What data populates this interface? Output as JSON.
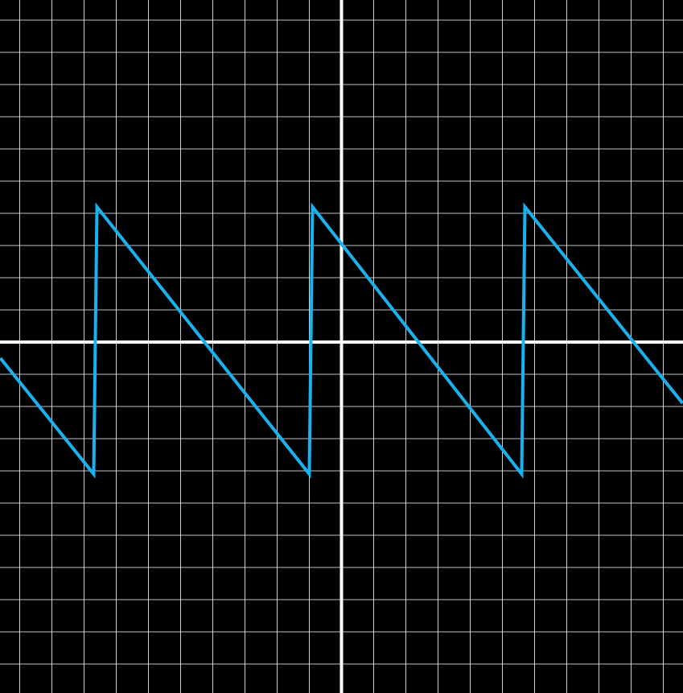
{
  "chart_data": {
    "type": "line",
    "title": "",
    "xlabel": "",
    "ylabel": "",
    "xlim": [
      -10.6,
      10.6
    ],
    "ylim": [
      -10.6,
      10.6
    ],
    "grid": true,
    "grid_step": 1,
    "axes_visible": true,
    "legend": "none",
    "series": [
      {
        "x": [
          -10.6,
          -7.7,
          -7.6,
          -1.0,
          -0.9,
          5.6,
          5.7,
          10.6
        ],
        "y": [
          -0.5,
          -4.1,
          4.2,
          -4.1,
          4.2,
          -4.1,
          4.2,
          -1.9
        ]
      }
    ]
  },
  "colors": {
    "background": "#000000",
    "grid": "#ffffff",
    "axes": "#ffffff",
    "series": "#1ab2ee"
  }
}
